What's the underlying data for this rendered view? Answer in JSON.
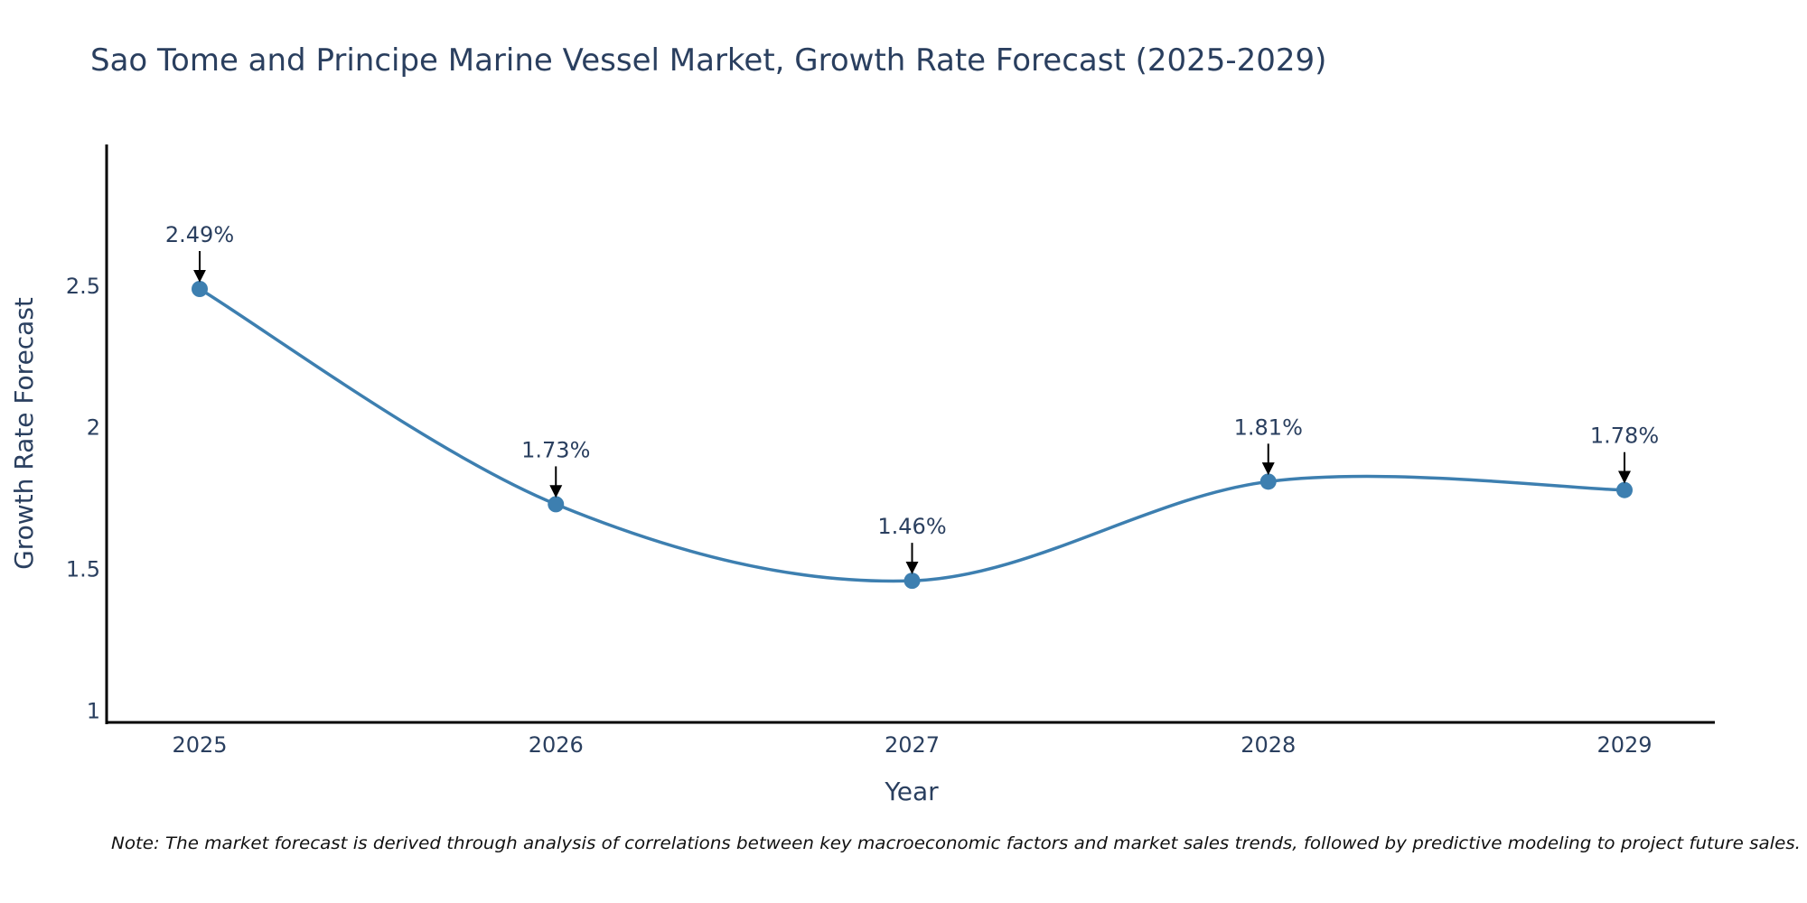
{
  "chart_data": {
    "type": "line",
    "title": "Sao Tome and Principe Marine Vessel Market, Growth Rate Forecast (2025-2029)",
    "xlabel": "Year",
    "ylabel": "Growth Rate Forecast",
    "categories": [
      "2025",
      "2026",
      "2027",
      "2028",
      "2029"
    ],
    "series": [
      {
        "name": "Growth Rate Forecast",
        "values": [
          2.49,
          1.73,
          1.46,
          1.81,
          1.78
        ],
        "labels": [
          "2.49%",
          "1.73%",
          "1.46%",
          "1.81%",
          "1.78%"
        ],
        "color": "#3d7fb0"
      }
    ],
    "ylim": [
      0.96,
      3.0
    ],
    "yticks": [
      1,
      1.5,
      2,
      2.5
    ],
    "ytick_labels": [
      "1",
      "1.5",
      "2",
      "2.5"
    ],
    "line_shape": "spline",
    "note": "Note: The market forecast is derived through analysis of correlations between key macroeconomic factors and market sales trends, followed by predictive modeling to project future sales."
  },
  "colors": {
    "line": "#3d7fb0",
    "text": "#2a3f5f",
    "axis": "#000000",
    "arrow": "#000000",
    "background": "#ffffff"
  }
}
